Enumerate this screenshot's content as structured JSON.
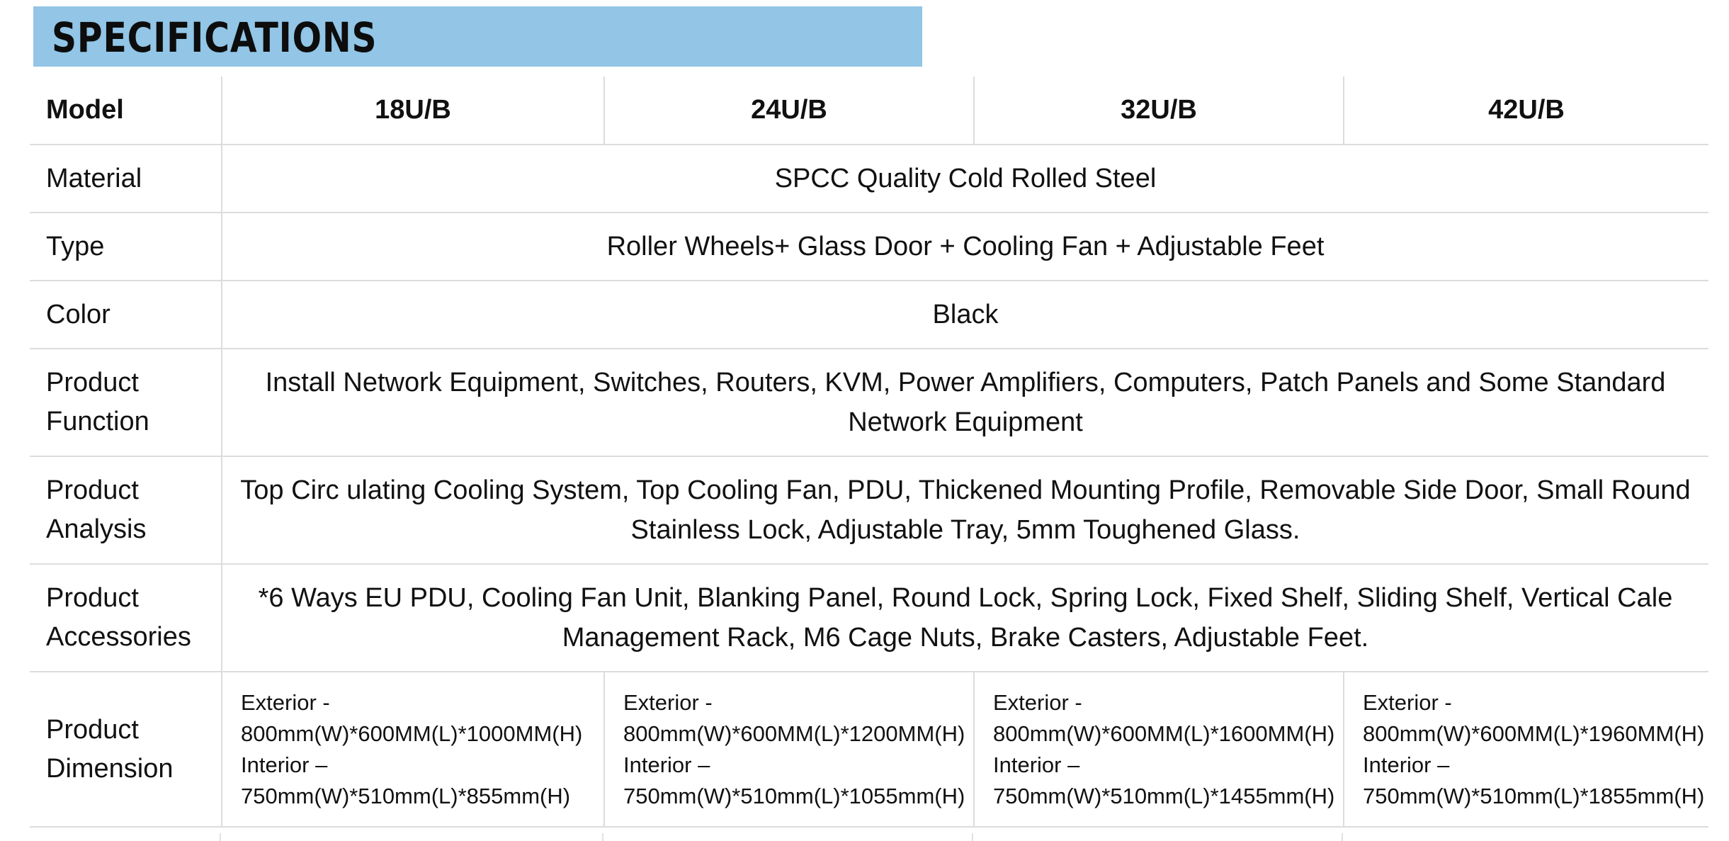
{
  "banner": {
    "title": "SPECIFICATIONS",
    "color": "#92c5e6"
  },
  "table": {
    "model": {
      "label": "Model",
      "columns": [
        "18U/B",
        "24U/B",
        "32U/B",
        "42U/B"
      ]
    },
    "material": {
      "label": "Material",
      "value": "SPCC Quality Cold Rolled Steel"
    },
    "type": {
      "label": "Type",
      "value": "Roller Wheels+ Glass Door + Cooling Fan + Adjustable Feet"
    },
    "color": {
      "label": "Color",
      "value": "Black"
    },
    "function": {
      "label_1": "Product",
      "label_2": "Function",
      "line_1": "Install Network Equipment, Switches, Routers, KVM, Power Amplifiers, Computers, Patch Panels and Some Standard",
      "line_2": "Network Equipment"
    },
    "analysis": {
      "label_1": "Product",
      "label_2": "Analysis",
      "line_1": "Top Circ ulating Cooling System, Top Cooling Fan, PDU, Thickened Mounting Profile, Removable Side Door, Small Round",
      "line_2": "Stainless Lock, Adjustable Tray, 5mm Toughened Glass."
    },
    "accessories": {
      "label_1": "Product",
      "label_2": "Accessories",
      "line_1": "*6 Ways EU PDU, Cooling Fan Unit, Blanking Panel, Round Lock, Spring Lock, Fixed Shelf, Sliding Shelf, Vertical Cale",
      "line_2": "Management Rack, M6 Cage Nuts, Brake Casters, Adjustable Feet."
    },
    "dimension": {
      "label_1": "Product",
      "label_2": "Dimension",
      "columns": [
        {
          "ext_label": "Exterior -",
          "ext_value": "800mm(W)*600MM(L)*1000MM(H)",
          "int_label": "Interior –",
          "int_value": "750mm(W)*510mm(L)*855mm(H)"
        },
        {
          "ext_label": "Exterior -",
          "ext_value": "800mm(W)*600MM(L)*1200MM(H)",
          "int_label": "Interior –",
          "int_value": "750mm(W)*510mm(L)*1055mm(H)"
        },
        {
          "ext_label": "Exterior -",
          "ext_value": "800mm(W)*600MM(L)*1600MM(H)",
          "int_label": "Interior –",
          "int_value": "750mm(W)*510mm(L)*1455mm(H)"
        },
        {
          "ext_label": "Exterior -",
          "ext_value": "800mm(W)*600MM(L)*1960MM(H)",
          "int_label": "Interior –",
          "int_value": "750mm(W)*510mm(L)*1855mm(H)"
        }
      ]
    }
  }
}
